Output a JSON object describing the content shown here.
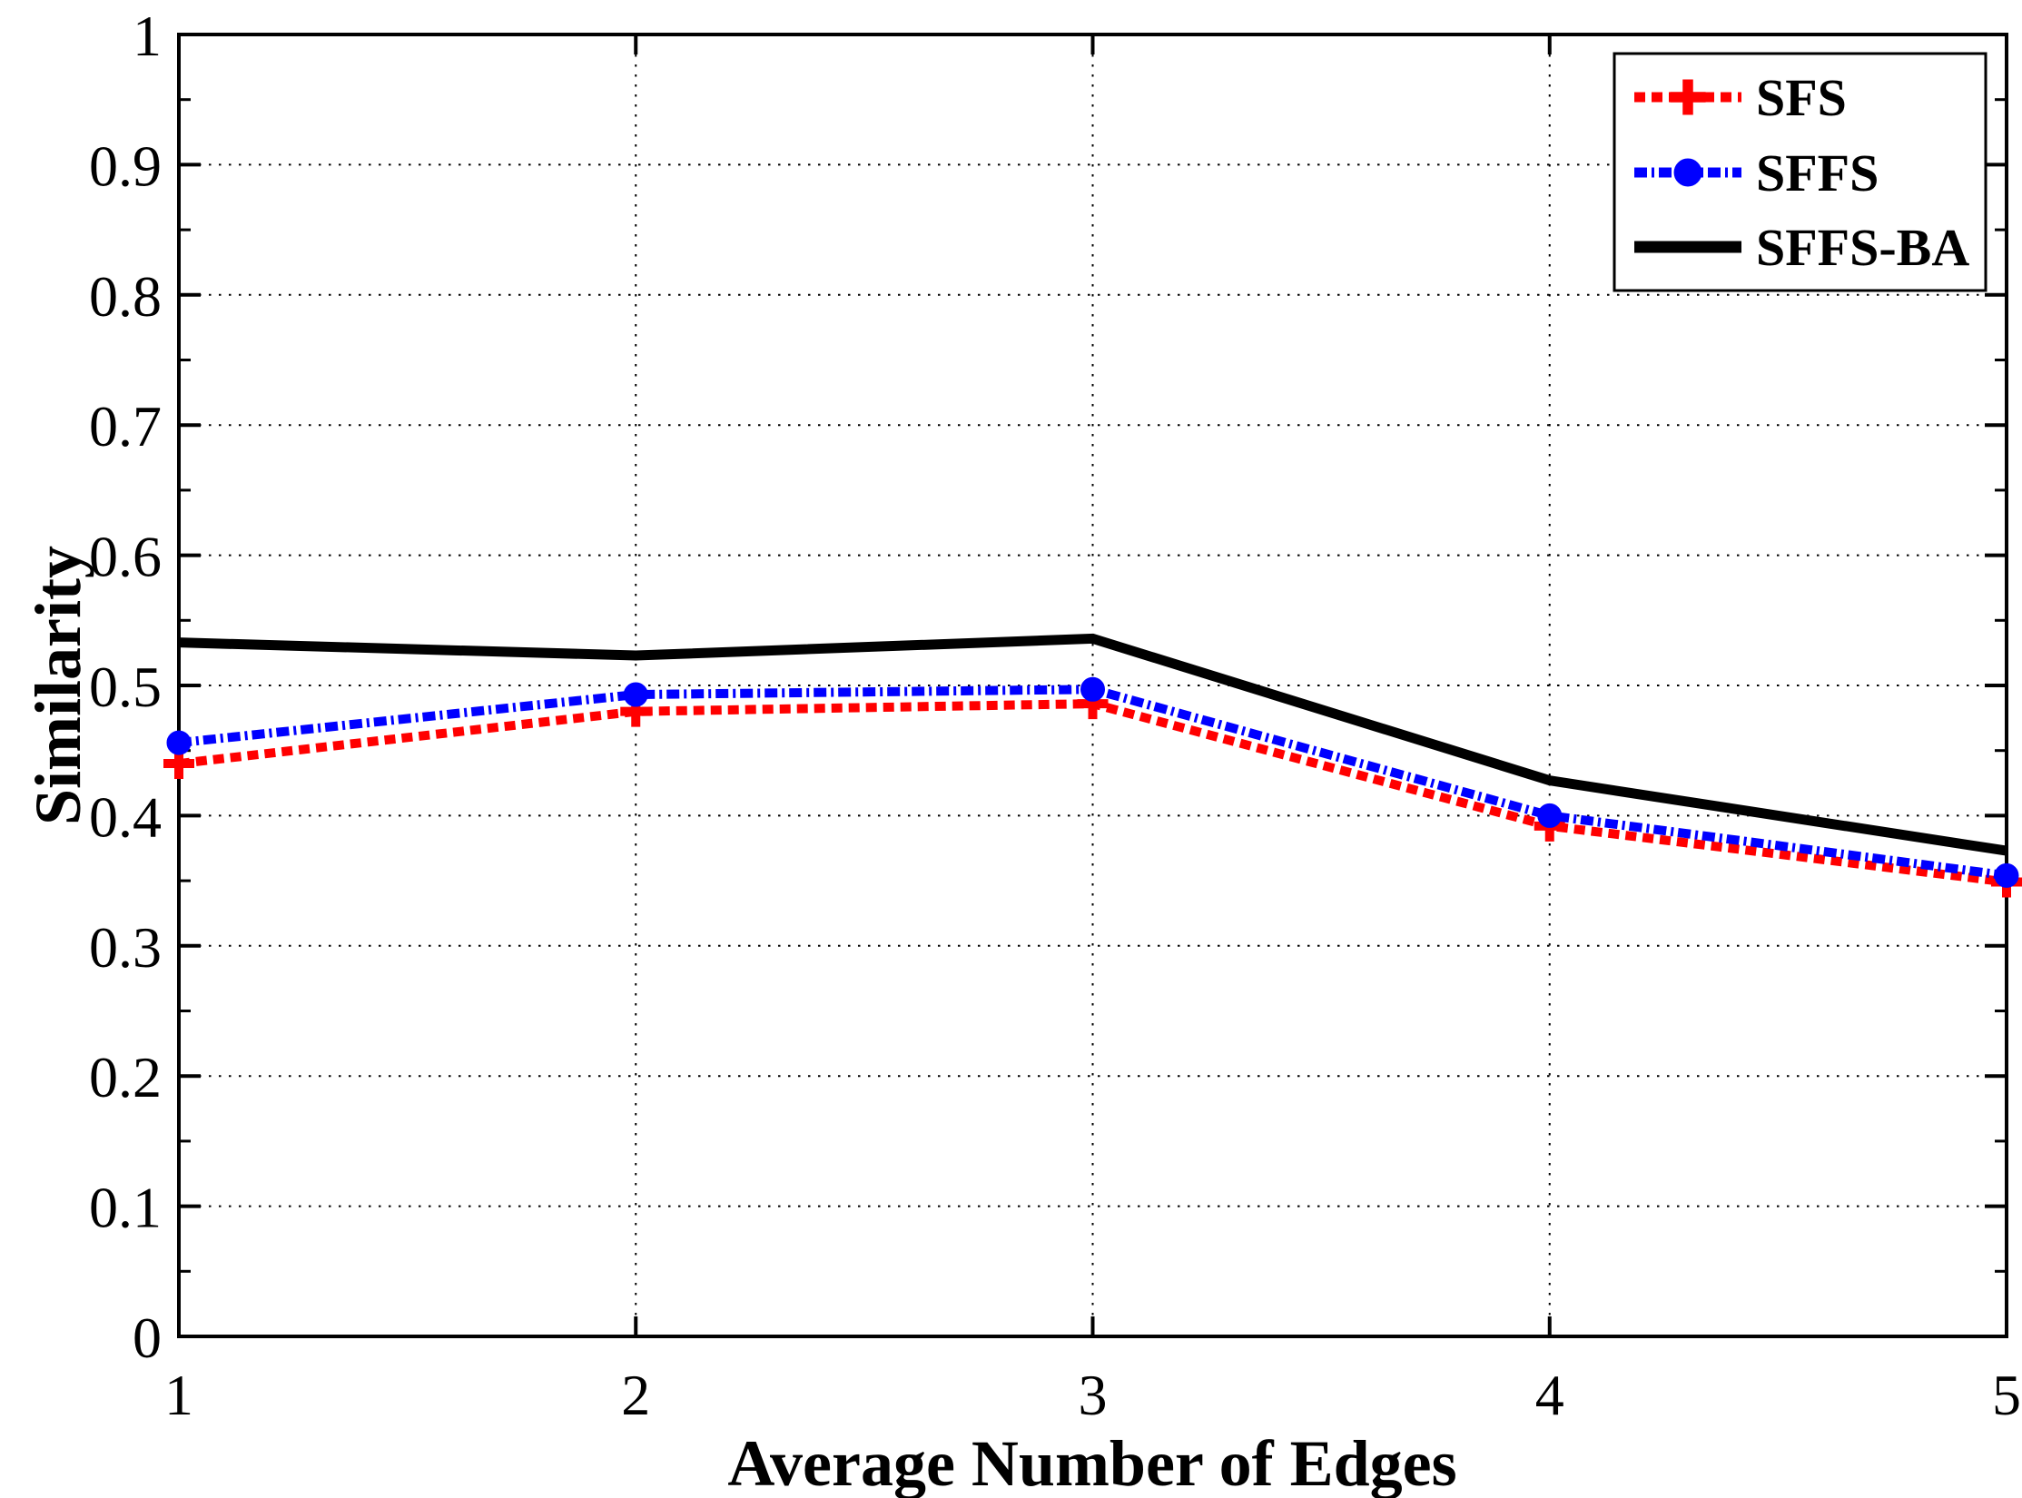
{
  "figure": {
    "background": "#ffffff",
    "frame_color": "#000000"
  },
  "chart_data": {
    "type": "line",
    "title": "",
    "xlabel": "Average Number of Edges",
    "ylabel": "Similarity",
    "x": [
      1,
      2,
      3,
      4,
      5
    ],
    "series": [
      {
        "name": "SFS",
        "color": "#ff0000",
        "linestyle": "dashed",
        "marker": "plus",
        "values": [
          0.44,
          0.48,
          0.486,
          0.392,
          0.349
        ]
      },
      {
        "name": "SFFS",
        "color": "#0000ff",
        "linestyle": "dashdot",
        "marker": "circle",
        "values": [
          0.456,
          0.493,
          0.497,
          0.4,
          0.354
        ]
      },
      {
        "name": "SFFS-BA",
        "color": "#000000",
        "linestyle": "solid",
        "marker": "none",
        "values": [
          0.533,
          0.523,
          0.536,
          0.427,
          0.373
        ]
      }
    ],
    "xlim": [
      1,
      5
    ],
    "ylim": [
      0,
      1
    ],
    "xticks": [
      1,
      2,
      3,
      4,
      5
    ],
    "xtick_labels": [
      "1",
      "2",
      "3",
      "4",
      "5"
    ],
    "yticks": [
      0,
      0.1,
      0.2,
      0.3,
      0.4,
      0.5,
      0.6,
      0.7,
      0.8,
      0.9,
      1
    ],
    "ytick_labels": [
      "0",
      "0.1",
      "0.2",
      "0.3",
      "0.4",
      "0.5",
      "0.6",
      "0.7",
      "0.8",
      "0.9",
      "1"
    ],
    "yminor_step": 0.05,
    "grid": "dotted",
    "grid_color": "#000000",
    "legend_position": "top-right",
    "legend_entries": [
      "SFS",
      "SFFS",
      "SFFS-BA"
    ]
  }
}
